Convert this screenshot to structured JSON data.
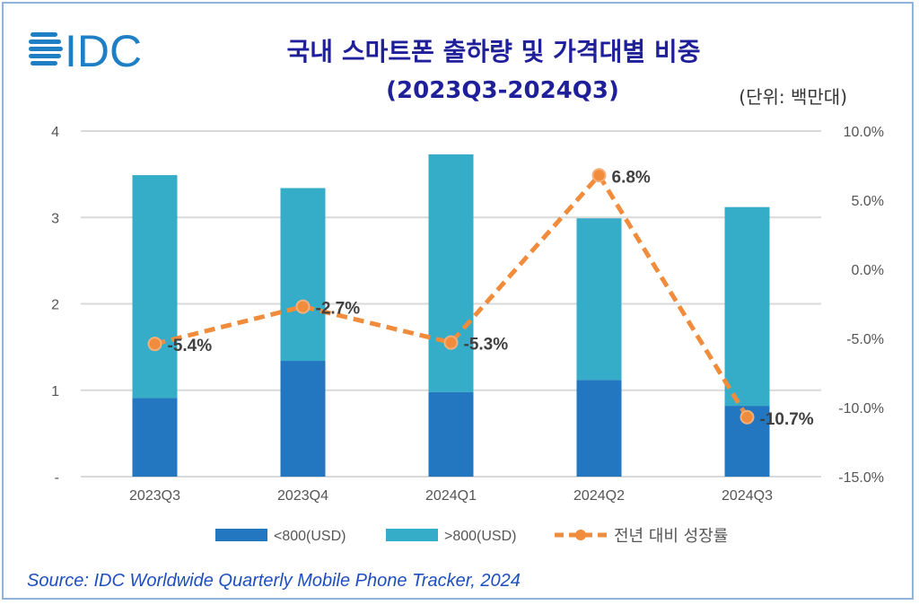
{
  "header": {
    "logo_text": "IDC",
    "title": "국내 스마트폰 출하량 및 가격대별 비중",
    "subtitle": "(2023Q3-2024Q3)",
    "unit": "(단위: 백만대)"
  },
  "source": "Source: IDC Worldwide Quarterly Mobile Phone Tracker, 2024",
  "colors": {
    "low": "#2277c0",
    "high": "#35adc9",
    "growth": "#f08c3c",
    "title": "#1f1f9a"
  },
  "chart_data": {
    "type": "bar",
    "stacked": true,
    "title": "국내 스마트폰 출하량 및 가격대별 비중",
    "categories": [
      "2023Q3",
      "2023Q4",
      "2024Q1",
      "2024Q2",
      "2024Q3"
    ],
    "series": [
      {
        "name": "<800(USD)",
        "axis": "left",
        "values": [
          0.91,
          1.34,
          0.98,
          1.12,
          0.82
        ]
      },
      {
        "name": ">800(USD)",
        "axis": "left",
        "values": [
          2.58,
          2.0,
          2.75,
          1.87,
          2.3
        ]
      },
      {
        "name": "전년 대비 성장률",
        "type": "line",
        "axis": "right",
        "values": [
          -5.4,
          -2.7,
          -5.3,
          6.8,
          -10.7
        ],
        "labels": [
          "-5.4%",
          "-2.7%",
          "-5.3%",
          "6.8%",
          "-10.7%"
        ]
      }
    ],
    "ylim": [
      0,
      4
    ],
    "yticks": [
      "-",
      "1",
      "2",
      "3",
      "4"
    ],
    "y2lim": [
      -15,
      10
    ],
    "y2ticks": [
      "-15.0%",
      "-10.0%",
      "-5.0%",
      "0.0%",
      "5.0%",
      "10.0%"
    ],
    "grid": true,
    "legend": "bottom"
  }
}
